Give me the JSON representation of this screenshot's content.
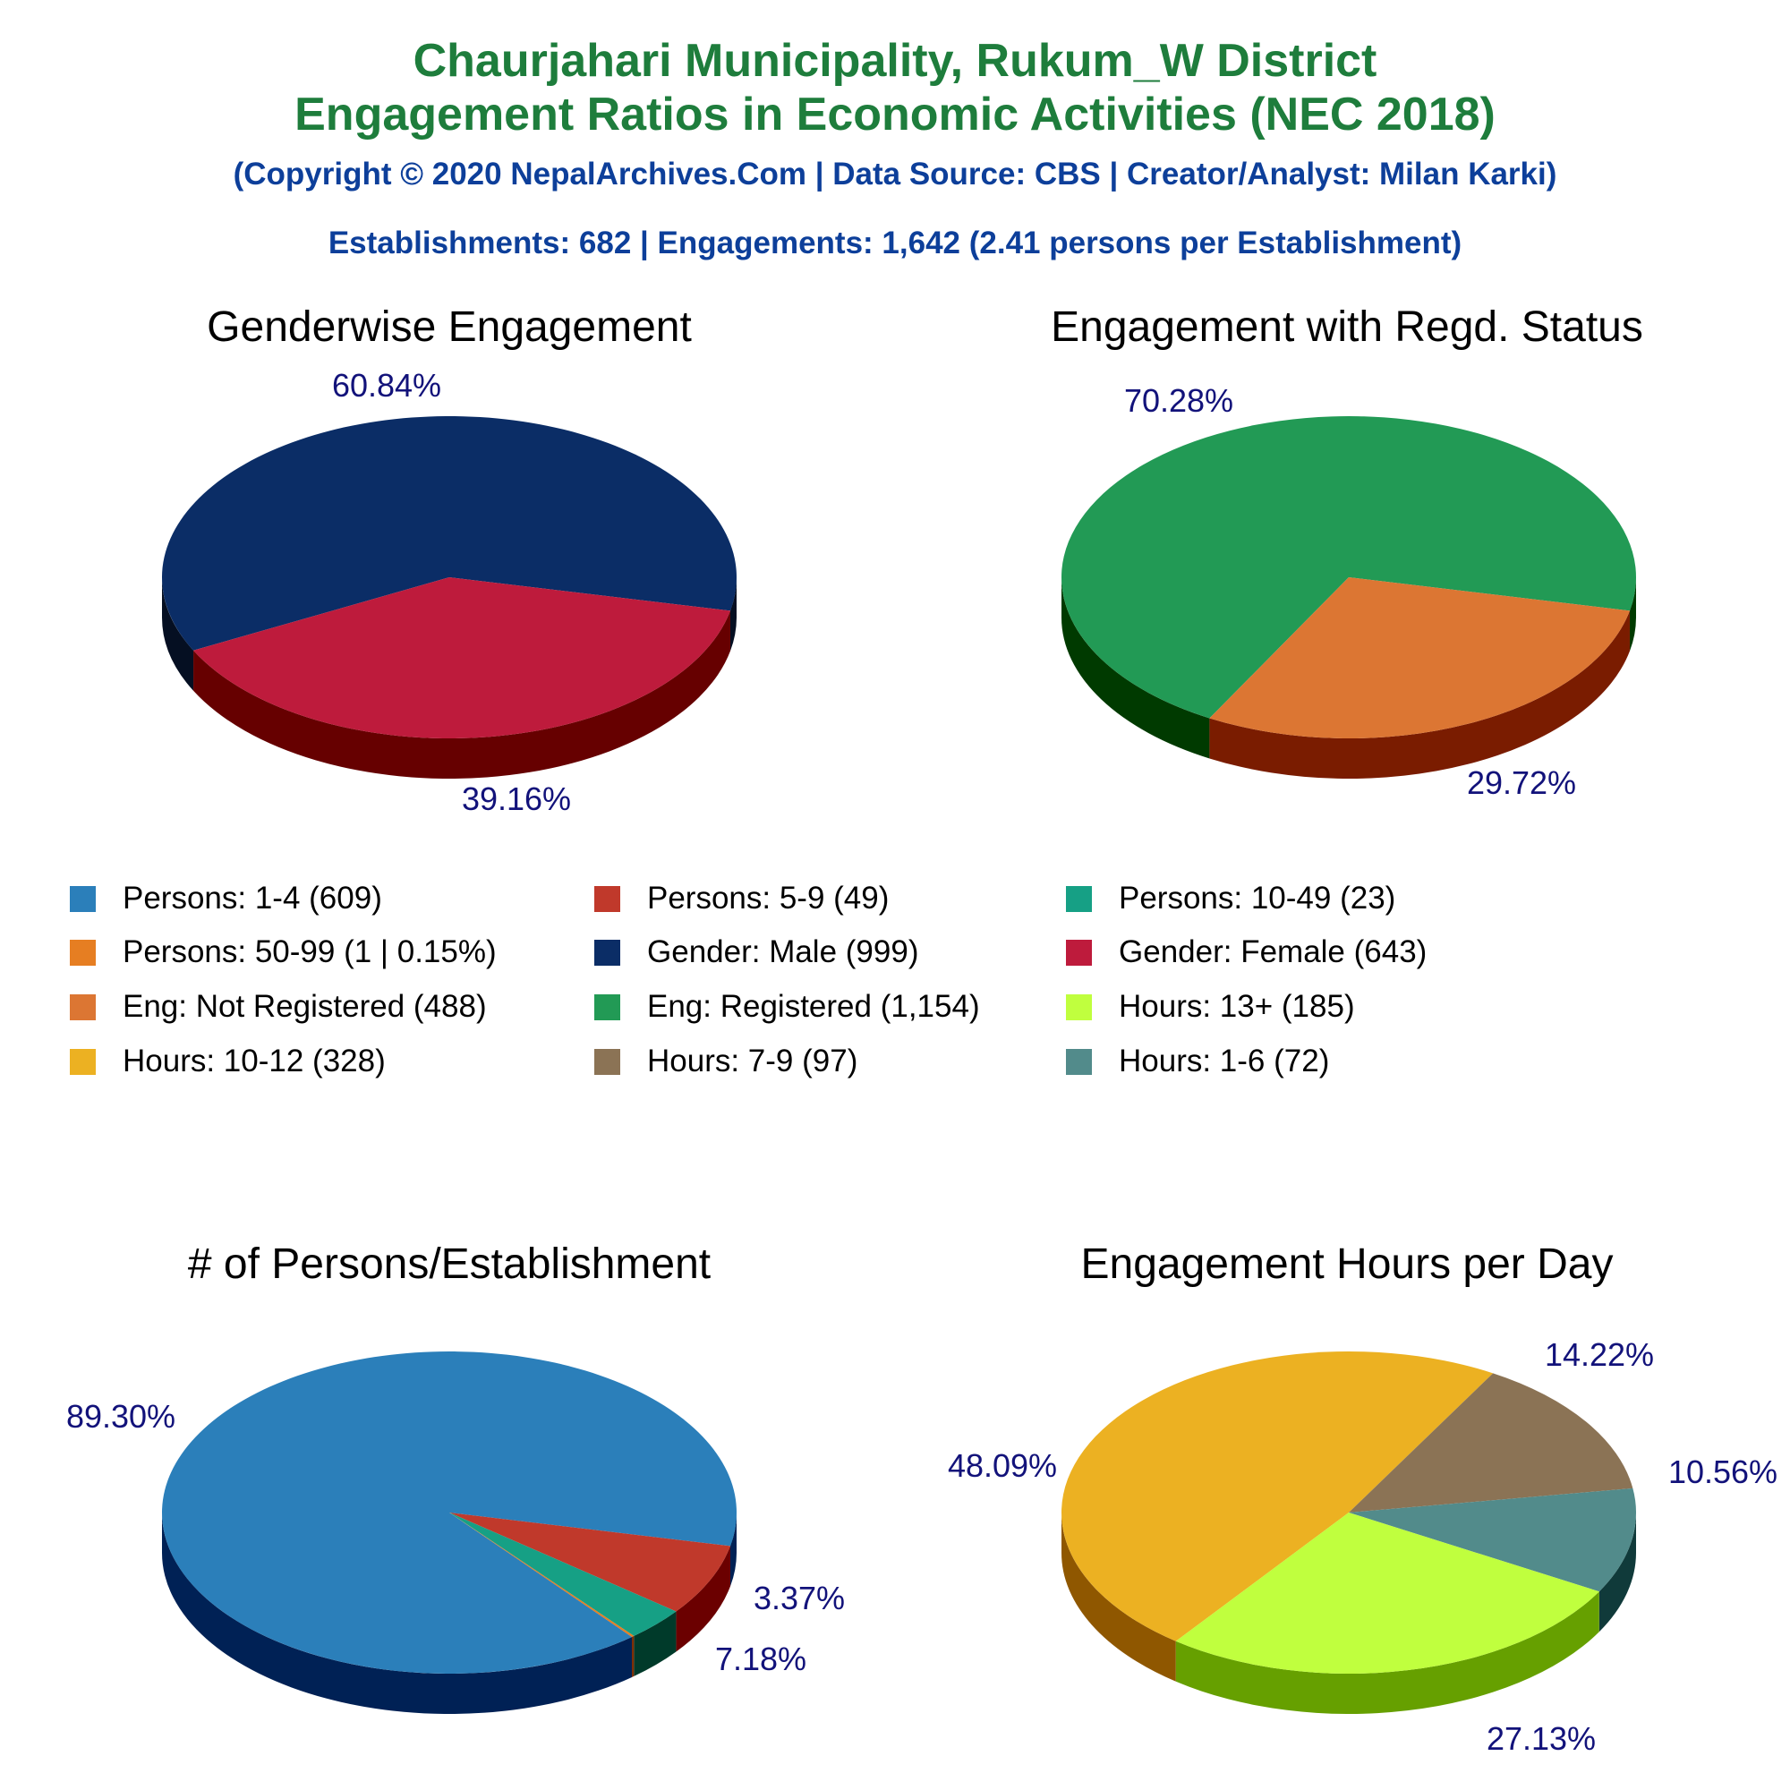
{
  "header": {
    "title_line1": "Chaurjahari Municipality, Rukum_W District",
    "title_line2": "Engagement Ratios in Economic Activities (NEC 2018)",
    "copyright": "(Copyright © 2020 NepalArchives.Com | Data Source: CBS | Creator/Analyst: Milan Karki)",
    "summary": "Establishments: 682 | Engagements: 1,642 (2.41 persons per Establishment)"
  },
  "colors": {
    "title": "#1e7d3c",
    "subtitle": "#0d3f9a",
    "slice_label": "#12127a"
  },
  "legend": [
    {
      "label": "Persons: 1-4 (609)",
      "color": "#2b7fba"
    },
    {
      "label": "Persons: 5-9 (49)",
      "color": "#c0392b"
    },
    {
      "label": "Persons: 10-49 (23)",
      "color": "#16a085"
    },
    {
      "label": "Persons: 50-99 (1 | 0.15%)",
      "color": "#e67e22"
    },
    {
      "label": "Gender: Male (999)",
      "color": "#0b2d66"
    },
    {
      "label": "Gender: Female (643)",
      "color": "#be1b3c"
    },
    {
      "label": "Eng: Not Registered (488)",
      "color": "#dc7633"
    },
    {
      "label": "Eng: Registered (1,154)",
      "color": "#229a55"
    },
    {
      "label": "Hours: 13+ (185)",
      "color": "#c0ff3e"
    },
    {
      "label": "Hours: 10-12 (328)",
      "color": "#ecb122"
    },
    {
      "label": "Hours: 7-9 (97)",
      "color": "#8b7355"
    },
    {
      "label": "Hours: 1-6 (72)",
      "color": "#528b8b"
    }
  ],
  "chart_data": [
    {
      "type": "pie",
      "title": "Genderwise Engagement",
      "slices": [
        {
          "name": "Gender: Male",
          "value": 999,
          "percent_label": "60.84%",
          "color": "#0b2d66",
          "side_color": "#050f22"
        },
        {
          "name": "Gender: Female",
          "value": 643,
          "percent_label": "39.16%",
          "color": "#be1b3c",
          "side_color": "#660000"
        }
      ]
    },
    {
      "type": "pie",
      "title": "Engagement with Regd. Status",
      "slices": [
        {
          "name": "Eng: Registered",
          "value": 1154,
          "percent_label": "70.28%",
          "color": "#229a55",
          "side_color": "#003a00"
        },
        {
          "name": "Eng: Not Registered",
          "value": 488,
          "percent_label": "29.72%",
          "color": "#dc7633",
          "side_color": "#7a1c00"
        }
      ]
    },
    {
      "type": "pie",
      "title": "# of Persons/Establishment",
      "slices": [
        {
          "name": "Persons: 1-4",
          "value": 609,
          "percent_label": "89.30%",
          "color": "#2b7fba",
          "side_color": "#002155"
        },
        {
          "name": "Persons: 5-9",
          "value": 49,
          "percent_label": "7.18%",
          "color": "#c0392b",
          "side_color": "#6b0000"
        },
        {
          "name": "Persons: 10-49",
          "value": 23,
          "percent_label": "3.37%",
          "color": "#16a085",
          "side_color": "#003a2a"
        },
        {
          "name": "Persons: 50-99",
          "value": 1,
          "percent_label": "",
          "color": "#e67e22",
          "side_color": "#7a2a00"
        }
      ]
    },
    {
      "type": "pie",
      "title": "Engagement Hours per Day",
      "slices": [
        {
          "name": "Hours: 10-12",
          "value": 328,
          "percent_label": "48.09%",
          "color": "#ecb122",
          "side_color": "#8f5700"
        },
        {
          "name": "Hours: 7-9",
          "value": 97,
          "percent_label": "14.22%",
          "color": "#8b7355",
          "side_color": "#3a2a10"
        },
        {
          "name": "Hours: 1-6",
          "value": 72,
          "percent_label": "10.56%",
          "color": "#528b8b",
          "side_color": "#103a3a"
        },
        {
          "name": "Hours: 13+",
          "value": 185,
          "percent_label": "27.13%",
          "color": "#c0ff3e",
          "side_color": "#66a000"
        }
      ]
    }
  ]
}
